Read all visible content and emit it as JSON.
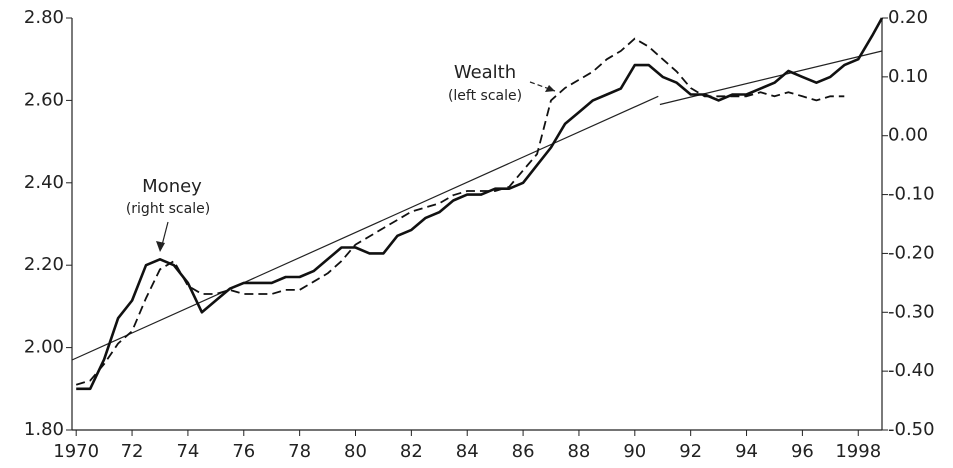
{
  "chart_data": {
    "type": "line",
    "x": [
      1970.0,
      1970.5,
      1971.0,
      1971.5,
      1972.0,
      1972.5,
      1973.0,
      1973.5,
      1974.0,
      1974.5,
      1975.0,
      1975.5,
      1976.0,
      1976.5,
      1977.0,
      1977.5,
      1978.0,
      1978.5,
      1979.0,
      1979.5,
      1980.0,
      1980.5,
      1981.0,
      1981.5,
      1982.0,
      1982.5,
      1983.0,
      1983.5,
      1984.0,
      1984.5,
      1985.0,
      1985.5,
      1986.0,
      1986.5,
      1987.0,
      1987.5,
      1988.0,
      1988.5,
      1989.0,
      1989.5,
      1990.0,
      1990.5,
      1991.0,
      1991.5,
      1992.0,
      1992.5,
      1993.0,
      1993.5,
      1994.0,
      1994.5,
      1995.0,
      1995.5,
      1996.0,
      1996.5,
      1997.0,
      1997.5,
      1998.0,
      1998.5,
      1998.85
    ],
    "series": [
      {
        "name": "Wealth",
        "note": "(left scale)",
        "color": "#111111",
        "style": "dashed",
        "axis": "y",
        "values": [
          1.91,
          1.92,
          1.96,
          2.01,
          2.04,
          2.12,
          2.19,
          2.21,
          2.15,
          2.13,
          2.13,
          2.14,
          2.13,
          2.13,
          2.13,
          2.14,
          2.14,
          2.16,
          2.18,
          2.21,
          2.25,
          2.27,
          2.29,
          2.31,
          2.33,
          2.34,
          2.35,
          2.37,
          2.38,
          2.38,
          2.38,
          2.39,
          2.43,
          2.47,
          2.6,
          2.63,
          2.65,
          2.67,
          2.7,
          2.72,
          2.75,
          2.73,
          2.7,
          2.67,
          2.63,
          2.61,
          2.61,
          2.61,
          2.61,
          2.62,
          2.61,
          2.62,
          2.61,
          2.6,
          2.61,
          2.61,
          null,
          null,
          null
        ]
      },
      {
        "name": "Money",
        "note": "(right scale)",
        "color": "#111111",
        "style": "solid",
        "axis": "y2",
        "values": [
          -0.43,
          -0.43,
          -0.38,
          -0.31,
          -0.28,
          -0.22,
          -0.21,
          -0.22,
          -0.25,
          -0.3,
          -0.28,
          -0.26,
          -0.25,
          -0.25,
          -0.25,
          -0.24,
          -0.24,
          -0.23,
          -0.21,
          -0.19,
          -0.19,
          -0.2,
          -0.2,
          -0.17,
          -0.16,
          -0.14,
          -0.13,
          -0.11,
          -0.1,
          -0.1,
          -0.09,
          -0.09,
          -0.08,
          -0.05,
          -0.02,
          0.02,
          0.04,
          0.06,
          0.07,
          0.08,
          0.12,
          0.12,
          0.1,
          0.09,
          0.07,
          0.07,
          0.06,
          0.07,
          0.07,
          0.08,
          0.09,
          0.11,
          0.1,
          0.09,
          0.1,
          0.12,
          0.13,
          0.17,
          0.2
        ]
      }
    ],
    "trend_lines": [
      {
        "x": [
          1969.85,
          1990.84
        ],
        "values": [
          1.97,
          2.61
        ]
      },
      {
        "x": [
          1990.9,
          1998.85
        ],
        "values": [
          2.59,
          2.72
        ]
      }
    ],
    "xlim": [
      1969.85,
      1998.85
    ],
    "xticks": [
      1970,
      {
        "value": 1972,
        "label": "72"
      },
      {
        "value": 1974,
        "label": "74"
      },
      {
        "value": 1976,
        "label": "76"
      },
      {
        "value": 1978,
        "label": "78"
      },
      {
        "value": 1980,
        "label": "80"
      },
      {
        "value": 1982,
        "label": "82"
      },
      {
        "value": 1984,
        "label": "84"
      },
      {
        "value": 1986,
        "label": "86"
      },
      {
        "value": 1988,
        "label": "88"
      },
      {
        "value": 1990,
        "label": "90"
      },
      {
        "value": 1992,
        "label": "92"
      },
      {
        "value": 1994,
        "label": "94"
      },
      {
        "value": 1996,
        "label": "96"
      },
      1998
    ],
    "ylim": [
      1.8,
      2.8
    ],
    "yticks": [
      {
        "value": 1.8,
        "label": "1.80"
      },
      {
        "value": 2.0,
        "label": "2.00"
      },
      {
        "value": 2.2,
        "label": "2.20"
      },
      {
        "value": 2.4,
        "label": "2.40"
      },
      {
        "value": 2.6,
        "label": "2.60"
      },
      {
        "value": 2.8,
        "label": "2.80"
      }
    ],
    "y2lim": [
      -0.5,
      0.2
    ],
    "y2ticks": [
      {
        "value": -0.5,
        "label": "-0.50"
      },
      {
        "value": -0.4,
        "label": "-0.40"
      },
      {
        "value": -0.3,
        "label": "-0.30"
      },
      {
        "value": -0.2,
        "label": "-0.20"
      },
      {
        "value": -0.1,
        "label": "-0.10"
      },
      {
        "value": 0,
        "label": "0.00"
      },
      {
        "value": 0.1,
        "label": "0.10"
      },
      {
        "value": 0.2,
        "label": "0.20"
      }
    ]
  }
}
